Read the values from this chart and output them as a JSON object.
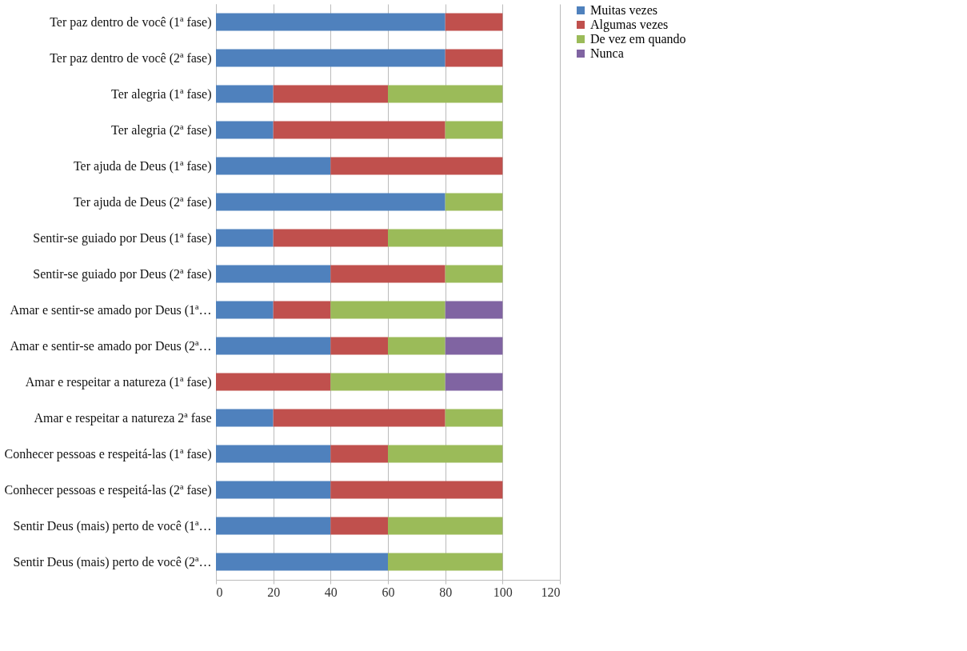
{
  "chart_data": {
    "type": "bar",
    "orientation": "horizontal",
    "stacked": true,
    "categories": [
      "Ter paz dentro de você (1ª fase)",
      "Ter paz dentro de você (2ª fase)",
      "Ter alegria (1ª fase)",
      "Ter alegria (2ª fase)",
      "Ter ajuda de Deus (1ª fase)",
      "Ter ajuda de Deus (2ª fase)",
      "Sentir-se guiado por Deus (1ª fase)",
      "Sentir-se guiado por Deus (2ª fase)",
      "Amar e sentir-se amado por Deus (1ª…",
      "Amar e sentir-se amado por Deus (2ª…",
      "Amar e respeitar a natureza (1ª fase)",
      "Amar e respeitar a natureza 2ª fase",
      "Conhecer pessoas e respeitá-las (1ª fase)",
      "Conhecer pessoas e respeitá-las (2ª fase)",
      "Sentir Deus (mais) perto de você (1ª…",
      "Sentir Deus (mais) perto de você (2ª…"
    ],
    "series": [
      {
        "name": "Muitas vezes",
        "color": "#4f81bd",
        "values": [
          80,
          80,
          20,
          20,
          40,
          80,
          20,
          40,
          20,
          40,
          0,
          20,
          40,
          40,
          40,
          60
        ]
      },
      {
        "name": "Algumas vezes",
        "color": "#c0504d",
        "values": [
          20,
          20,
          40,
          60,
          60,
          0,
          40,
          40,
          20,
          20,
          40,
          60,
          20,
          60,
          20,
          0
        ]
      },
      {
        "name": "De vez em quando",
        "color": "#9bbb59",
        "values": [
          0,
          0,
          40,
          20,
          0,
          20,
          40,
          20,
          40,
          20,
          40,
          20,
          40,
          0,
          40,
          40
        ]
      },
      {
        "name": "Nunca",
        "color": "#8064a2",
        "values": [
          0,
          0,
          0,
          0,
          0,
          0,
          0,
          0,
          20,
          20,
          20,
          0,
          0,
          0,
          0,
          0
        ]
      }
    ],
    "xlim": [
      0,
      120
    ],
    "xticks": [
      0,
      20,
      40,
      60,
      80,
      100,
      120
    ],
    "grid": "x",
    "legend": "right"
  }
}
